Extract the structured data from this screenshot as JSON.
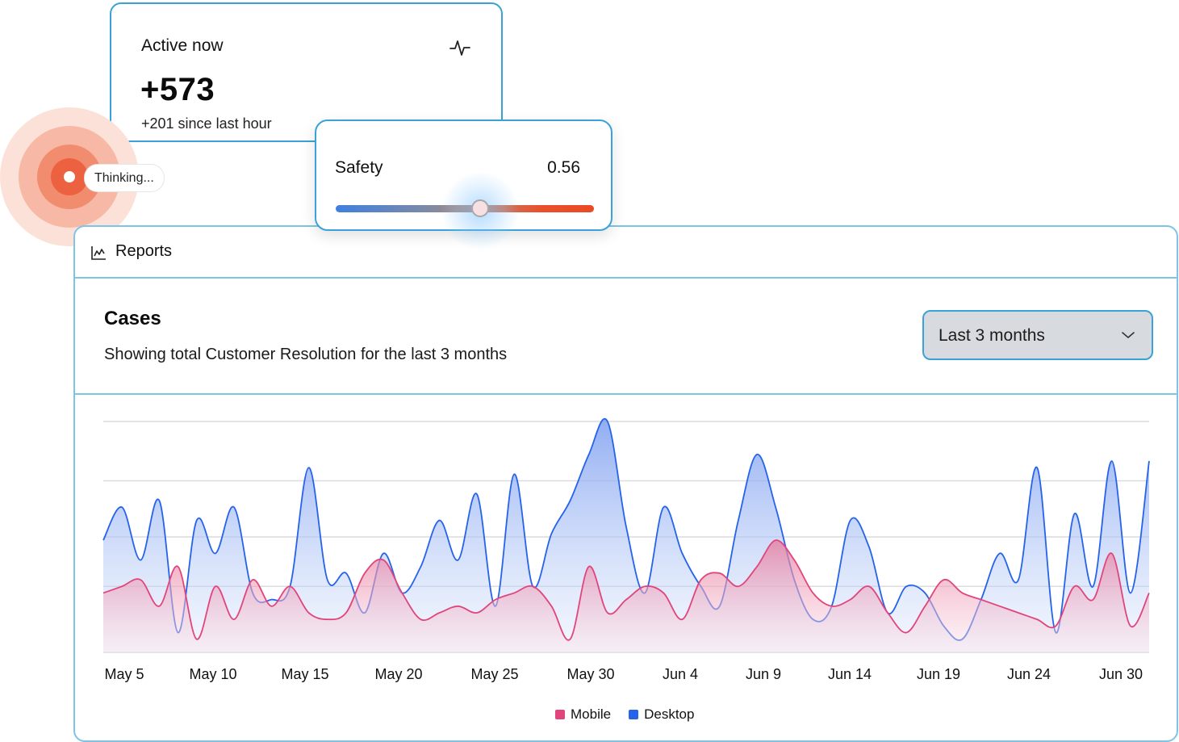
{
  "active": {
    "title": "Active now",
    "value": "+573",
    "subtitle": "+201 since last hour",
    "icon": "activity-pulse-icon"
  },
  "thinking": {
    "label": "Thinking..."
  },
  "safety": {
    "label": "Safety",
    "value_text": "0.56",
    "value": 0.56
  },
  "reports": {
    "title": "Reports",
    "icon": "line-chart-icon",
    "cases_title": "Cases",
    "cases_subtitle": "Showing total Customer Resolution for the last 3 months",
    "range": {
      "selected": "Last 3 months"
    }
  },
  "colors": {
    "accent_border": "#3aa2d8",
    "mobile": "#e0457b",
    "desktop": "#2563eb",
    "thinking": "#ec6241"
  },
  "chart_data": {
    "type": "area",
    "x_ticks": [
      "May 5",
      "May 10",
      "May 15",
      "May 20",
      "May 25",
      "May 30",
      "Jun 4",
      "Jun 9",
      "Jun 14",
      "Jun 19",
      "Jun 24",
      "Jun 30"
    ],
    "x": [
      "May 5",
      "May 6",
      "May 7",
      "May 8",
      "May 9",
      "May 10",
      "May 11",
      "May 12",
      "May 13",
      "May 14",
      "May 15",
      "May 16",
      "May 17",
      "May 18",
      "May 19",
      "May 20",
      "May 21",
      "May 22",
      "May 23",
      "May 24",
      "May 25",
      "May 26",
      "May 27",
      "May 28",
      "May 29",
      "May 30",
      "May 31",
      "Jun 1",
      "Jun 2",
      "Jun 3",
      "Jun 4",
      "Jun 5",
      "Jun 6",
      "Jun 7",
      "Jun 8",
      "Jun 9",
      "Jun 10",
      "Jun 11",
      "Jun 12",
      "Jun 13",
      "Jun 14",
      "Jun 15",
      "Jun 16",
      "Jun 17",
      "Jun 18",
      "Jun 19",
      "Jun 20",
      "Jun 21",
      "Jun 22",
      "Jun 23",
      "Jun 24",
      "Jun 25",
      "Jun 26",
      "Jun 27",
      "Jun 28",
      "Jun 29",
      "Jun 30"
    ],
    "series": [
      {
        "name": "Mobile",
        "values": [
          18,
          20,
          22,
          14,
          26,
          4,
          20,
          10,
          22,
          14,
          20,
          12,
          10,
          12,
          24,
          28,
          18,
          10,
          12,
          14,
          12,
          16,
          18,
          20,
          14,
          4,
          26,
          12,
          16,
          20,
          18,
          10,
          22,
          24,
          20,
          26,
          34,
          28,
          18,
          14,
          16,
          20,
          12,
          6,
          14,
          22,
          18,
          16,
          14,
          12,
          10,
          8,
          20,
          16,
          30,
          8,
          18
        ]
      },
      {
        "name": "Desktop",
        "values": [
          34,
          44,
          28,
          46,
          6,
          40,
          30,
          44,
          18,
          16,
          20,
          56,
          22,
          24,
          12,
          30,
          18,
          26,
          40,
          28,
          48,
          14,
          54,
          20,
          36,
          46,
          60,
          70,
          38,
          18,
          44,
          30,
          20,
          14,
          40,
          60,
          44,
          22,
          10,
          14,
          40,
          32,
          12,
          20,
          18,
          8,
          4,
          16,
          30,
          22,
          56,
          6,
          42,
          20,
          58,
          18,
          58
        ]
      }
    ]
  },
  "legend": {
    "mobile": "Mobile",
    "desktop": "Desktop"
  }
}
